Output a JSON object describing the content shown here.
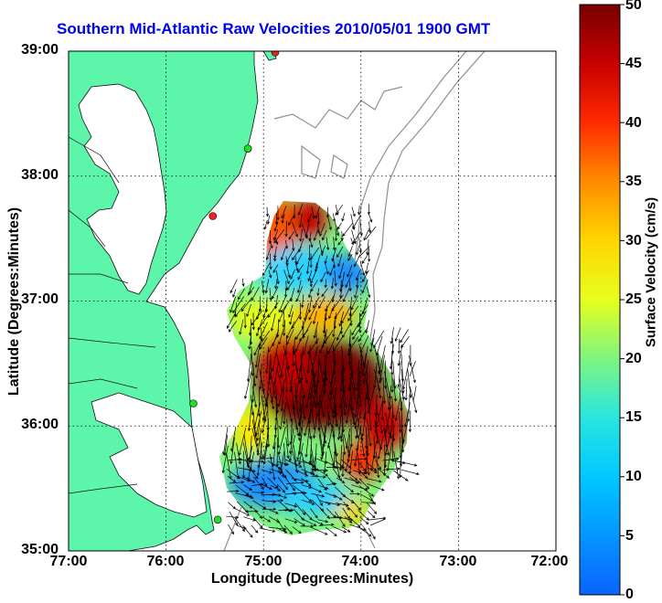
{
  "title": "Southern Mid-Atlantic Raw Velocities 2010/05/01 1900 GMT",
  "xlabel": "Longitude (Degrees:Minutes)",
  "ylabel": "Latitude (Degrees:Minutes)",
  "colorbar": {
    "label": "Surface Velocity (cm/s)",
    "min": 0,
    "max": 50,
    "ticks": [
      "0",
      "5",
      "10",
      "15",
      "20",
      "25",
      "30",
      "35",
      "40",
      "45",
      "50"
    ]
  },
  "axes": {
    "x_ticks": [
      "77:00",
      "76:00",
      "75:00",
      "74:00",
      "73:00",
      "72:00"
    ],
    "y_ticks": [
      "39:00",
      "38:00",
      "37:00",
      "36:00",
      "35:00"
    ],
    "lon_range": [
      -77,
      -72
    ],
    "lat_range": [
      35,
      39
    ],
    "grid": "dotted"
  },
  "colors": {
    "land": "#5cf5aa",
    "title": "#0000ee",
    "coast": "#000000",
    "bathymetry": "#909090",
    "station_green": "#22dd22",
    "station_red": "#ee2222"
  },
  "stations": [
    {
      "lon": -74.88,
      "lat": 38.99,
      "status": "red"
    },
    {
      "lon": -75.16,
      "lat": 38.22,
      "status": "green"
    },
    {
      "lon": -75.52,
      "lat": 37.68,
      "status": "red"
    },
    {
      "lon": -75.72,
      "lat": 36.18,
      "status": "green"
    },
    {
      "lon": -75.47,
      "lat": 35.25,
      "status": "green"
    }
  ],
  "chart_data": {
    "type": "heatmap",
    "description_units": "surface velocity cm/s",
    "regions": [
      {
        "name": "north-lobe-cyan",
        "speed": 10
      },
      {
        "name": "north-lobe-red",
        "speed": 42
      },
      {
        "name": "central-yellow",
        "speed": 25
      },
      {
        "name": "central-core",
        "speed": 48
      },
      {
        "name": "east-edge",
        "speed": 45
      },
      {
        "name": "south-blue",
        "speed": 9
      }
    ]
  }
}
